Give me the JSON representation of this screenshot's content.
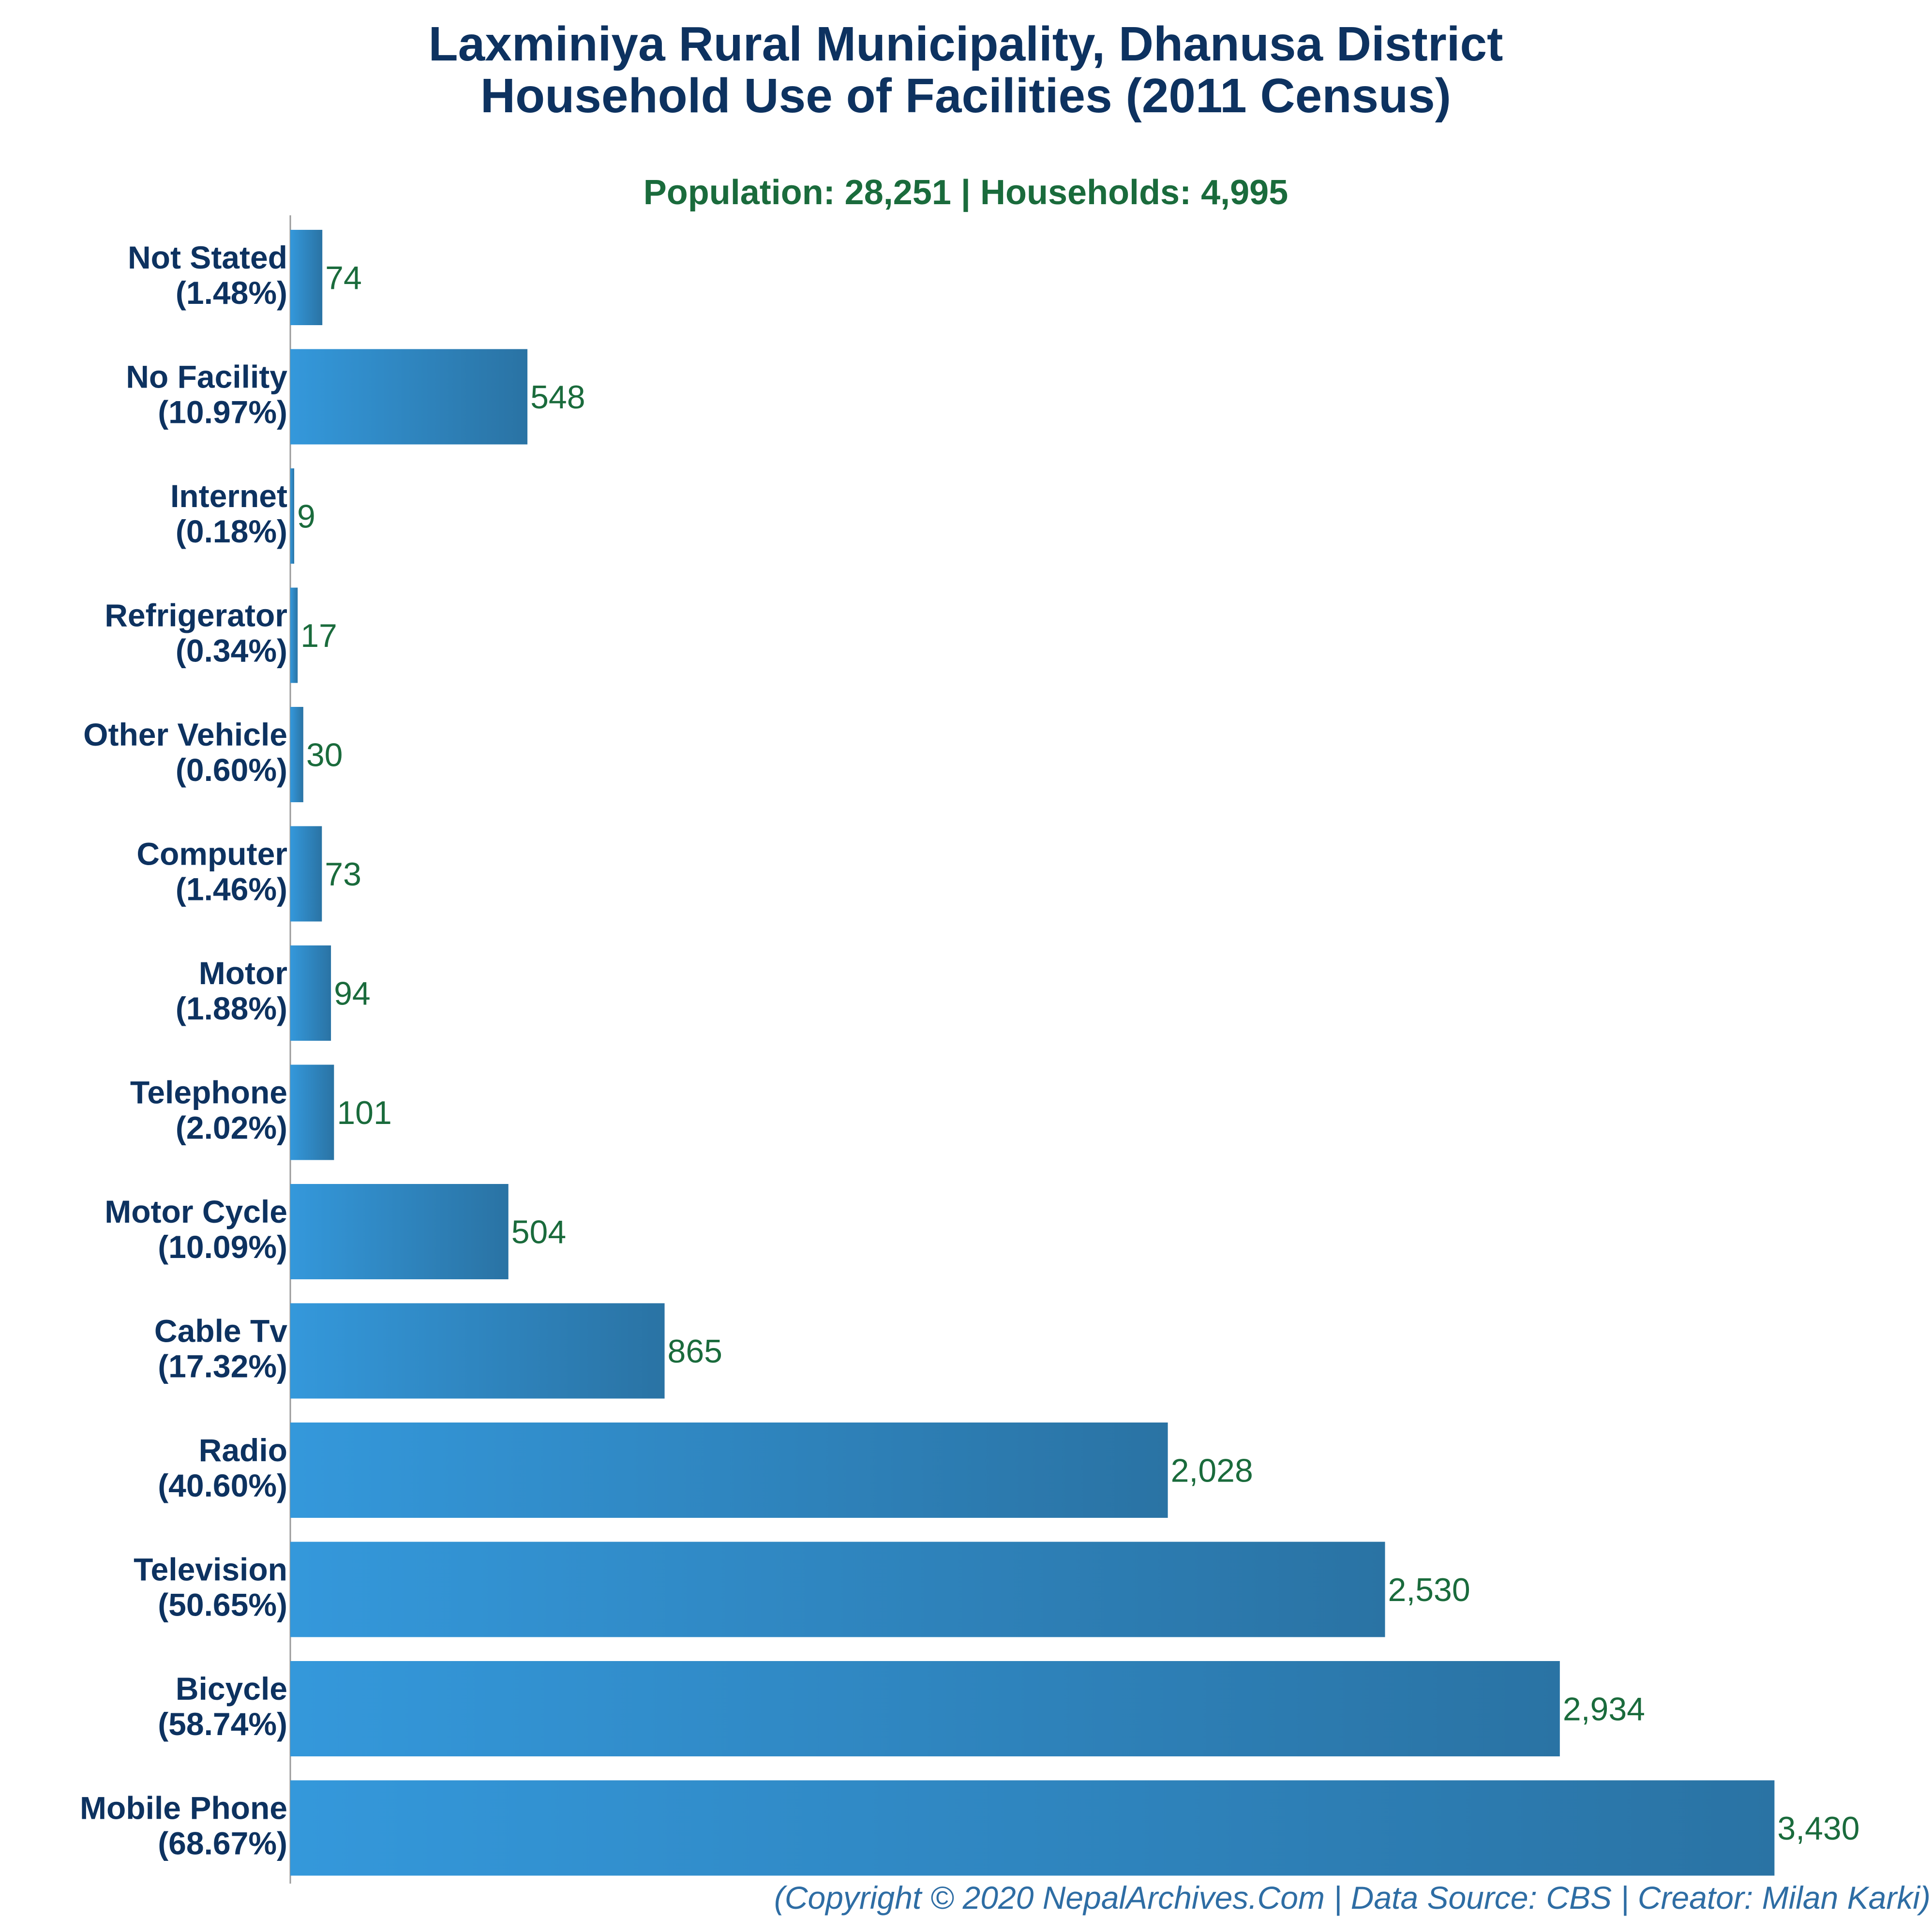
{
  "chart_data": {
    "type": "bar",
    "orientation": "horizontal",
    "title": "Laxminiya Rural Municipality, Dhanusa District",
    "title_line2": "Household Use of Facilities (2011 Census)",
    "subtitle": "Population: 28,251 | Households: 4,995",
    "categories": [
      "Not Stated",
      "No Facility",
      "Internet",
      "Refrigerator",
      "Other Vehicle",
      "Computer",
      "Motor",
      "Telephone",
      "Motor Cycle",
      "Cable Tv",
      "Radio",
      "Television",
      "Bicycle",
      "Mobile Phone"
    ],
    "percent_labels": [
      "(1.48%)",
      "(10.97%)",
      "(0.18%)",
      "(0.34%)",
      "(0.60%)",
      "(1.46%)",
      "(1.88%)",
      "(2.02%)",
      "(10.09%)",
      "(17.32%)",
      "(40.60%)",
      "(50.65%)",
      "(58.74%)",
      "(68.67%)"
    ],
    "values": [
      74,
      548,
      9,
      17,
      30,
      73,
      94,
      101,
      504,
      865,
      2028,
      2530,
      2934,
      3430
    ],
    "value_labels": [
      "74",
      "548",
      "9",
      "17",
      "30",
      "73",
      "94",
      "101",
      "504",
      "865",
      "2,028",
      "2,530",
      "2,934",
      "3,430"
    ],
    "xlim": [
      0,
      3500
    ],
    "grid": false,
    "legend": "none",
    "colors": {
      "bar_start": "#3498db",
      "bar_end": "#2a73a4",
      "axis": "#999999"
    }
  },
  "footer": "(Copyright © 2020 NepalArchives.Com | Data Source: CBS | Creator: Milan Karki)"
}
